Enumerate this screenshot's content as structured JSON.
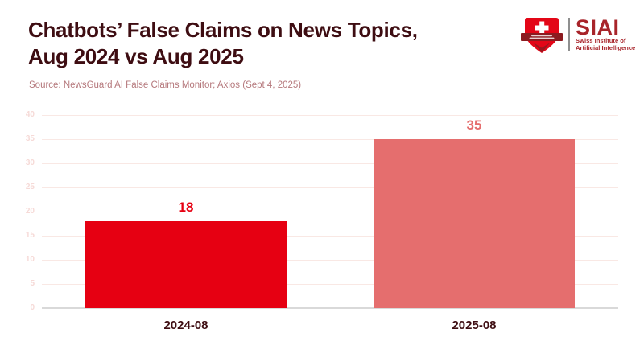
{
  "header": {
    "title_line1": "Chatbots’ False Claims on News Topics,",
    "title_line2": "Aug 2024 vs Aug 2025",
    "source": "Source: NewsGuard AI False Claims Monitor; Axios (Sept 4, 2025)"
  },
  "logo": {
    "acronym": "SIAI",
    "line1": "Swiss Institute of",
    "line2": "Artificial Intelligence",
    "icon": "siai-shield-icon"
  },
  "colors": {
    "title": "#3e0d12",
    "source": "#b5787c",
    "grid": "#f9e8e4",
    "tick": "#f6dad7",
    "axis": "#d9d9d9",
    "logo_red": "#a8242a",
    "shield_red": "#e30617",
    "banner_dark": "#8c1b20",
    "bar_2024": "#e60012",
    "bar_2025": "#e56e6e"
  },
  "chart_data": {
    "type": "bar",
    "title": "Chatbots’ False Claims on News Topics, Aug 2024 vs Aug 2025",
    "source": "NewsGuard AI False Claims Monitor; Axios (Sept 4, 2025)",
    "categories": [
      "2024-08",
      "2025-08"
    ],
    "values": [
      18,
      35
    ],
    "value_labels": [
      "18",
      "35"
    ],
    "bar_colors": [
      "#e60012",
      "#e56e6e"
    ],
    "value_label_colors": [
      "#e60012",
      "#e56e6e"
    ],
    "yticks": [
      0,
      5,
      10,
      15,
      20,
      25,
      30,
      35,
      40
    ],
    "ylim": [
      0,
      40
    ],
    "xlabel": "",
    "ylabel": "",
    "grid": true,
    "legend_position": "none"
  }
}
